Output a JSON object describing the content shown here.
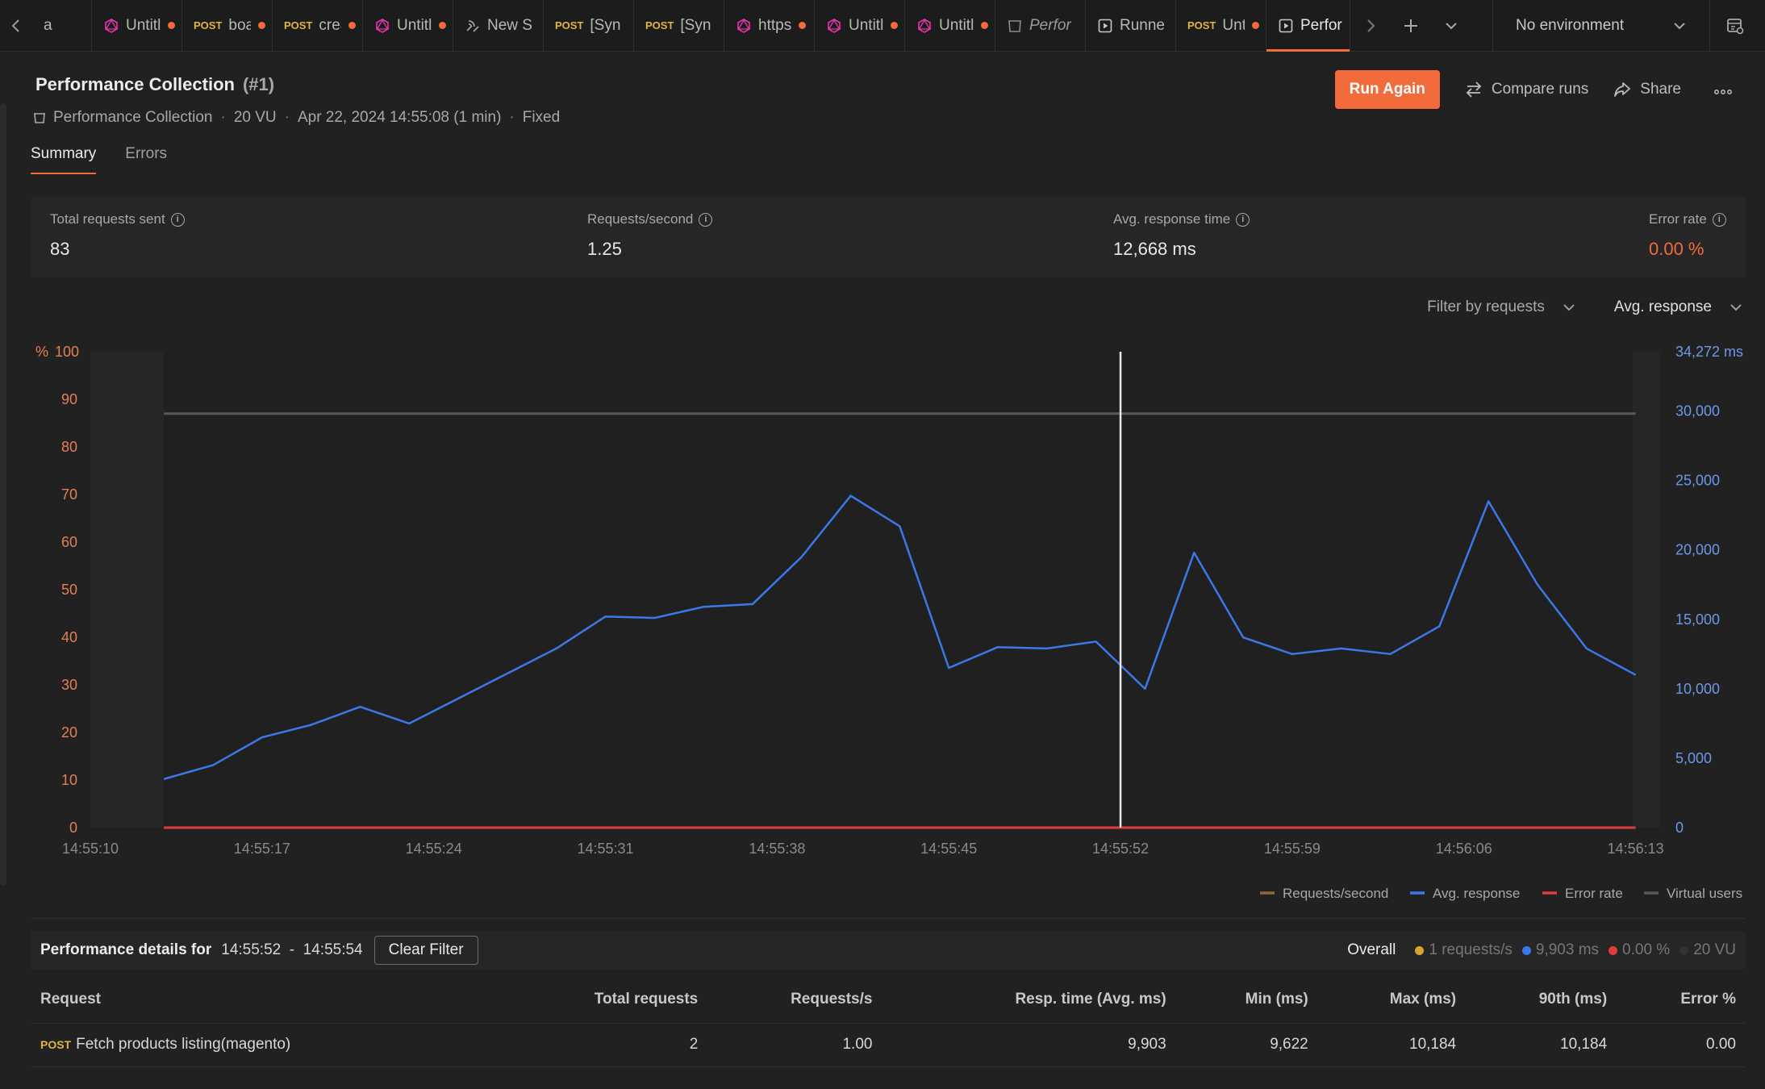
{
  "tabs": [
    {
      "icon": "",
      "method": "",
      "label": "a",
      "dot": false,
      "italic": false,
      "active": false
    },
    {
      "icon": "graphql-icon",
      "method": "",
      "label": "Untitl",
      "dot": true,
      "italic": false,
      "active": false
    },
    {
      "icon": "",
      "method": "POST",
      "label": "boa",
      "dot": true,
      "italic": false,
      "active": false
    },
    {
      "icon": "",
      "method": "POST",
      "label": "crea",
      "dot": true,
      "italic": false,
      "active": false
    },
    {
      "icon": "graphql-icon",
      "method": "",
      "label": "Untitl",
      "dot": true,
      "italic": false,
      "active": false
    },
    {
      "icon": "websocket-icon",
      "method": "",
      "label": "New S",
      "dot": false,
      "italic": false,
      "active": false
    },
    {
      "icon": "",
      "method": "POST",
      "label": "[Syn",
      "dot": false,
      "italic": false,
      "active": false
    },
    {
      "icon": "",
      "method": "POST",
      "label": "[Syn",
      "dot": false,
      "italic": false,
      "active": false
    },
    {
      "icon": "graphql-icon",
      "method": "",
      "label": "https",
      "dot": true,
      "italic": false,
      "active": false
    },
    {
      "icon": "graphql-icon",
      "method": "",
      "label": "Untitl",
      "dot": true,
      "italic": false,
      "active": false
    },
    {
      "icon": "graphql-icon",
      "method": "",
      "label": "Untitl",
      "dot": true,
      "italic": false,
      "active": false
    },
    {
      "icon": "collection-icon",
      "method": "",
      "label": "Perfor",
      "dot": false,
      "italic": true,
      "active": false
    },
    {
      "icon": "runner-icon",
      "method": "",
      "label": "Runne",
      "dot": false,
      "italic": false,
      "active": false
    },
    {
      "icon": "",
      "method": "POST",
      "label": "Unt",
      "dot": true,
      "italic": false,
      "active": false
    },
    {
      "icon": "runner-icon",
      "method": "",
      "label": "Perfor",
      "dot": false,
      "italic": false,
      "active": true
    }
  ],
  "environment": {
    "label": "No environment"
  },
  "run": {
    "title": "Performance Collection",
    "run_number": "(#1)",
    "collection": "Performance Collection",
    "vu": "20 VU",
    "started": "Apr 22, 2024 14:55:08 (1 min)",
    "load_profile": "Fixed"
  },
  "actions": {
    "run_again": "Run Again",
    "compare": "Compare runs",
    "share": "Share"
  },
  "subtabs": [
    "Summary",
    "Errors"
  ],
  "stats": [
    {
      "label": "Total requests sent",
      "value": "83"
    },
    {
      "label": "Requests/second",
      "value": "1.25"
    },
    {
      "label": "Avg. response time",
      "value": "12,668 ms"
    },
    {
      "label": "Error rate",
      "value": "0.00 %"
    }
  ],
  "filters": {
    "requests": "Filter by requests",
    "metric": "Avg. response"
  },
  "colors": {
    "accent": "#f26b3a",
    "avg_response": "#3b78e7",
    "requests_per_second": "#8a6a35",
    "error_rate": "#e03b3b",
    "virtual_users": "#585858"
  },
  "chart_data": {
    "type": "line",
    "left_axis": {
      "unit": "%",
      "ticks": [
        "100",
        "90",
        "80",
        "70",
        "60",
        "50",
        "40",
        "30",
        "20",
        "10",
        "0"
      ],
      "range": [
        0,
        100
      ]
    },
    "right_axis": {
      "unit": "ms",
      "ticks": [
        "34,272 ms",
        "30,000",
        "25,000",
        "20,000",
        "15,000",
        "10,000",
        "5,000",
        "0"
      ],
      "range": [
        0,
        34272
      ]
    },
    "x_ticks": [
      "14:55:10",
      "14:55:17",
      "14:55:24",
      "14:55:31",
      "14:55:38",
      "14:55:45",
      "14:55:52",
      "14:55:59",
      "14:56:06",
      "14:56:13"
    ],
    "x_range": [
      "14:55:10",
      "14:56:14"
    ],
    "series": [
      {
        "name": "Avg. response",
        "axis": "right",
        "x": [
          "14:55:13",
          "14:55:15",
          "14:55:17",
          "14:55:19",
          "14:55:21",
          "14:55:23",
          "14:55:25",
          "14:55:27",
          "14:55:29",
          "14:55:31",
          "14:55:33",
          "14:55:35",
          "14:55:37",
          "14:55:39",
          "14:55:41",
          "14:55:43",
          "14:55:45",
          "14:55:47",
          "14:55:49",
          "14:55:51",
          "14:55:53",
          "14:55:55",
          "14:55:57",
          "14:55:59",
          "14:56:01",
          "14:56:03",
          "14:56:05",
          "14:56:07",
          "14:56:09",
          "14:56:11",
          "14:56:13"
        ],
        "values": [
          3500,
          4500,
          6500,
          7400,
          8700,
          7500,
          9300,
          11100,
          12900,
          15200,
          15100,
          15900,
          16100,
          19500,
          23900,
          21700,
          11500,
          13000,
          12900,
          13400,
          10000,
          19800,
          13700,
          12500,
          12900,
          12500,
          14500,
          23500,
          17500,
          12900,
          11000
        ]
      },
      {
        "name": "Virtual users",
        "axis": "left",
        "x": [
          "14:55:13",
          "14:56:13"
        ],
        "values": [
          87,
          87
        ]
      },
      {
        "name": "Error rate",
        "axis": "left",
        "x": [
          "14:55:13",
          "14:56:13"
        ],
        "values": [
          0,
          0
        ]
      }
    ],
    "selection": "14:55:52",
    "legend": [
      "Requests/second",
      "Avg. response",
      "Error rate",
      "Virtual users"
    ],
    "legend_position": "bottom-right"
  },
  "details": {
    "label": "Performance details for",
    "range": "14:55:52  -  14:55:54",
    "clear": "Clear Filter",
    "overall_label": "Overall",
    "overall": [
      "1 requests/s",
      "9,903 ms",
      "0.00 %",
      "20 VU"
    ]
  },
  "table": {
    "headers": [
      "Request",
      "Total requests",
      "Requests/s",
      "Resp. time (Avg. ms)",
      "Min (ms)",
      "Max (ms)",
      "90th (ms)",
      "Error %"
    ],
    "rows": [
      {
        "method": "POST",
        "name": "Fetch products listing(magento)",
        "total": "2",
        "rps": "1.00",
        "avg": "9,903",
        "min": "9,622",
        "max": "10,184",
        "p90": "10,184",
        "error": "0.00"
      }
    ]
  }
}
